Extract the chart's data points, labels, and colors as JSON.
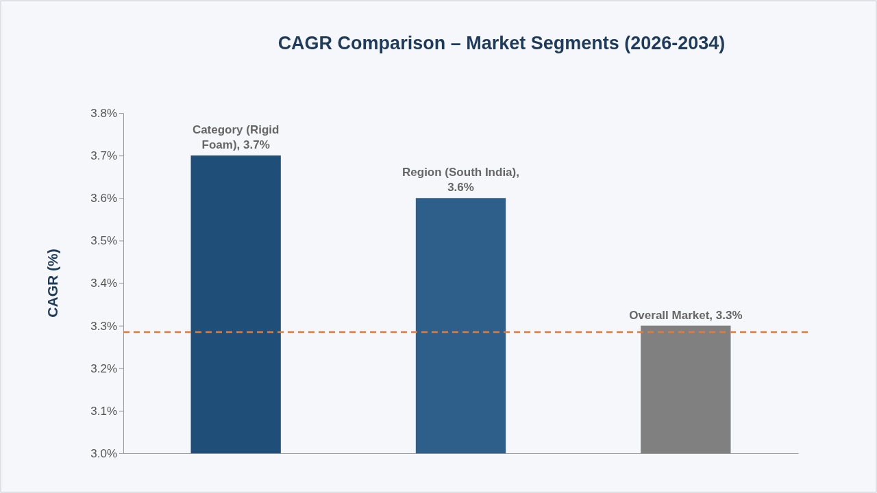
{
  "chart_data": {
    "type": "bar",
    "title": "CAGR Comparison – Market Segments (2026-2034)",
    "ylabel": "CAGR (%)",
    "categories": [
      null,
      null,
      null
    ],
    "values": [
      3.7,
      3.6,
      3.3
    ],
    "colors": [
      "#1f4e79",
      "#2e5f8a",
      "#808080"
    ],
    "value_labels": [
      "Category (Rigid Foam), 3.7%",
      "Region (South India), 3.6%",
      "Overall Market, 3.3%"
    ],
    "ylim": [
      3.0,
      3.8
    ],
    "yticks": [
      {
        "value": 3.0,
        "label": "3.0%"
      },
      {
        "value": 3.1,
        "label": "3.1%"
      },
      {
        "value": 3.2,
        "label": "3.2%"
      },
      {
        "value": 3.3,
        "label": "3.3%"
      },
      {
        "value": 3.4,
        "label": "3.4%"
      },
      {
        "value": 3.5,
        "label": "3.5%"
      },
      {
        "value": 3.6,
        "label": "3.6%"
      },
      {
        "value": 3.7,
        "label": "3.7%"
      },
      {
        "value": 3.8,
        "label": "3.8%"
      }
    ],
    "ref_lines": [
      {
        "axis": "y",
        "value": 3.285,
        "color": "#e07b39",
        "line_style": "dashed"
      }
    ],
    "grid": false
  }
}
